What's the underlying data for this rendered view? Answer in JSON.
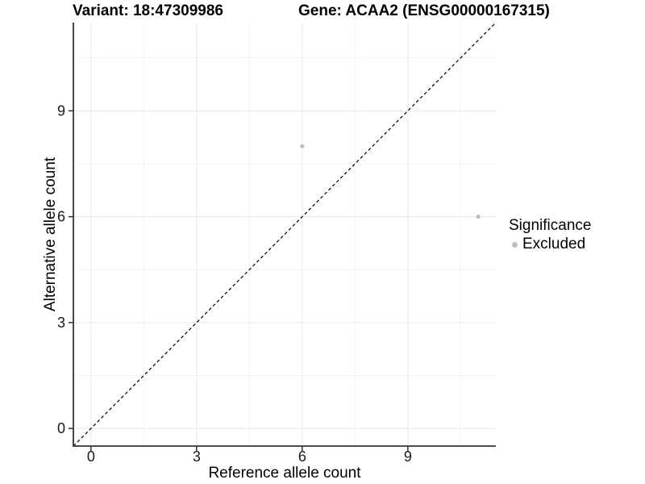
{
  "chart_data": {
    "type": "scatter",
    "title_left": "Variant: 18:47309986",
    "title_right": "Gene: ACAA2 (ENSG00000167315)",
    "xlabel": "Reference allele count",
    "ylabel": "Alternative allele count",
    "xlim": [
      -0.5,
      11.5
    ],
    "ylim": [
      -0.5,
      11.5
    ],
    "x_ticks": [
      0,
      3,
      6,
      9
    ],
    "y_ticks": [
      0,
      3,
      6,
      9
    ],
    "x_minor": [
      1.5,
      4.5,
      7.5,
      10.5
    ],
    "y_minor": [
      1.5,
      4.5,
      7.5,
      10.5
    ],
    "grid": true,
    "identity_line": {
      "style": "dashed",
      "from": [
        -0.5,
        -0.5
      ],
      "to": [
        11.5,
        11.5
      ]
    },
    "series": [
      {
        "name": "Excluded",
        "points": [
          {
            "x": 6,
            "y": 8
          },
          {
            "x": 11,
            "y": 6
          }
        ]
      }
    ],
    "legend": {
      "title": "Significance",
      "position": "right",
      "items": [
        {
          "label": "Excluded",
          "color": "#bebebe"
        }
      ]
    },
    "colors": {
      "point": "#bebebe",
      "axis_line": "#333333",
      "tick_mark": "#333333",
      "tick_label": "#1a1a1a",
      "axis_title": "#000000",
      "grid_major": "#e8e8e8",
      "grid_minor": "#f3f3f3",
      "identity_line": "#000000",
      "background": "#ffffff"
    }
  }
}
